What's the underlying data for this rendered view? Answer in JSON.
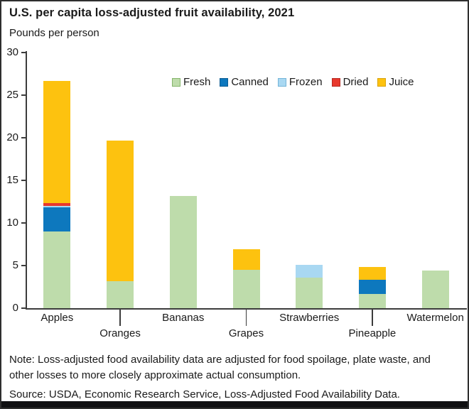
{
  "header": {
    "title": "U.S. per capita loss-adjusted fruit availability, 2021",
    "subtitle": "Pounds per person"
  },
  "footer": {
    "note": "Note: Loss-adjusted food availability data are adjusted for food spoilage, plate waste, and other losses to more closely approximate actual consumption.",
    "source": "Source: USDA, Economic Research Service, Loss-Adjusted Food Availability Data."
  },
  "colors": {
    "text": "#1a1a1a",
    "axis": "#3c3c3c",
    "footer_bar": "#101012"
  },
  "chart_data": {
    "type": "bar",
    "stacked": true,
    "title": "U.S. per capita loss-adjusted fruit availability, 2021",
    "ylabel": "Pounds per person",
    "xlabel": "",
    "ylim": [
      0,
      30
    ],
    "yticks": [
      0,
      5,
      10,
      15,
      20,
      25,
      30
    ],
    "grid": false,
    "legend_position": "top-inside-right",
    "legend_order": [
      "Fresh",
      "Canned",
      "Frozen",
      "Dried",
      "Juice"
    ],
    "categories": [
      "Apples",
      "Oranges",
      "Bananas",
      "Grapes",
      "Strawberries",
      "Pineapple",
      "Watermelon"
    ],
    "category_label_row": [
      1,
      2,
      1,
      2,
      1,
      2,
      1
    ],
    "series": [
      {
        "name": "Fresh",
        "color": "#bedcab",
        "border_color": "#85b56b",
        "values": [
          9.0,
          3.2,
          13.2,
          4.5,
          3.6,
          1.7,
          4.4
        ]
      },
      {
        "name": "Canned",
        "color": "#0d78be",
        "border_color": "#0a5c93",
        "values": [
          2.8,
          0,
          0,
          0,
          0,
          1.6,
          0
        ]
      },
      {
        "name": "Frozen",
        "color": "#a9d8f2",
        "border_color": "#74b4d8",
        "values": [
          0.2,
          0,
          0,
          0,
          1.5,
          0,
          0
        ]
      },
      {
        "name": "Dried",
        "color": "#e8382d",
        "border_color": "#b52a21",
        "values": [
          0.3,
          0,
          0,
          0,
          0,
          0,
          0
        ]
      },
      {
        "name": "Juice",
        "color": "#fdc20f",
        "border_color": "#d9a30c",
        "values": [
          14.4,
          16.5,
          0,
          2.4,
          0,
          1.5,
          0
        ]
      }
    ],
    "totals": [
      26.7,
      19.7,
      13.2,
      6.9,
      5.1,
      4.8,
      4.4
    ]
  }
}
